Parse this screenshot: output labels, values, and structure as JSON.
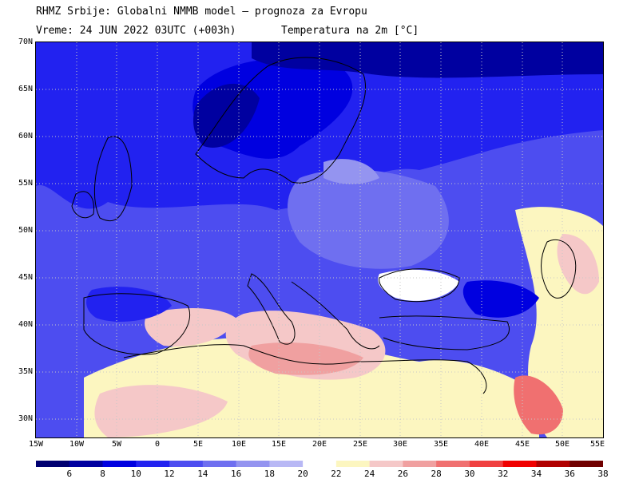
{
  "header": {
    "title": "RHMZ Srbije: Globalni NMMB model — prognoza za Evropu",
    "time": "Vreme: 24 JUN 2022 03UTC (+003h)",
    "variable": "Temperatura na 2m [°C]"
  },
  "map": {
    "projection": "lat-lon",
    "lon_range": [
      -15,
      55
    ],
    "lat_range": [
      28,
      70
    ],
    "lat_labels": [
      "70N",
      "65N",
      "60N",
      "55N",
      "50N",
      "45N",
      "40N",
      "35N",
      "30N"
    ],
    "lon_labels": [
      "15W",
      "10W",
      "5W",
      "0",
      "5E",
      "10E",
      "15E",
      "20E",
      "25E",
      "30E",
      "35E",
      "40E",
      "45E",
      "50E",
      "55E"
    ],
    "gridlines": true
  },
  "colorbar": {
    "labels": [
      "6",
      "8",
      "10",
      "12",
      "14",
      "16",
      "18",
      "20",
      "22",
      "24",
      "26",
      "28",
      "30",
      "32",
      "34",
      "36",
      "38"
    ],
    "colors": [
      "#000070",
      "#0000a0",
      "#0000e0",
      "#2222f0",
      "#4d4df0",
      "#6f6ff0",
      "#9494f0",
      "#b8b8f5",
      "#ffffff",
      "#fcf6c0",
      "#f5c8c8",
      "#f0a0a0",
      "#f07070",
      "#f04040",
      "#f00000",
      "#b00000",
      "#700000"
    ]
  }
}
